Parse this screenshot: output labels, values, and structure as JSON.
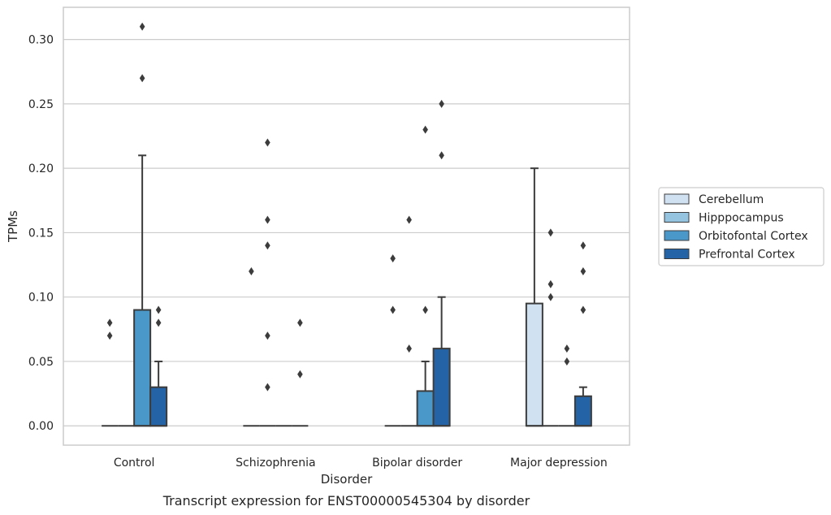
{
  "caption": "Transcript expression for ENST00000545304 by disorder",
  "chart_data": {
    "type": "box",
    "title": "",
    "xlabel": "Disorder",
    "ylabel": "TPMs",
    "ylim": [
      -0.015,
      0.325
    ],
    "yticks": [
      0.0,
      0.05,
      0.1,
      0.15,
      0.2,
      0.25,
      0.3
    ],
    "ytick_labels": [
      "0.00",
      "0.05",
      "0.10",
      "0.15",
      "0.20",
      "0.25",
      "0.30"
    ],
    "grid": true,
    "legend_position": "right",
    "categories": [
      "Control",
      "Schizophrenia",
      "Bipolar disorder",
      "Major depression"
    ],
    "series": [
      {
        "name": "Cerebellum",
        "color": "#d0e1f2",
        "boxes": [
          {
            "q1": 0.0,
            "median": 0.0,
            "q3": 0.0,
            "whisker_low": 0.0,
            "whisker_high": 0.0,
            "outliers": [
              0.07,
              0.08
            ]
          },
          {
            "q1": 0.0,
            "median": 0.0,
            "q3": 0.0,
            "whisker_low": 0.0,
            "whisker_high": 0.0,
            "outliers": [
              0.12
            ]
          },
          {
            "q1": 0.0,
            "median": 0.0,
            "q3": 0.0,
            "whisker_low": 0.0,
            "whisker_high": 0.0,
            "outliers": [
              0.09,
              0.13
            ]
          },
          {
            "q1": 0.0,
            "median": 0.0,
            "q3": 0.095,
            "whisker_low": 0.0,
            "whisker_high": 0.2,
            "outliers": []
          }
        ]
      },
      {
        "name": "Hipppocampus",
        "color": "#94c4df",
        "boxes": [
          {
            "q1": 0.0,
            "median": 0.0,
            "q3": 0.0,
            "whisker_low": 0.0,
            "whisker_high": 0.0,
            "outliers": []
          },
          {
            "q1": 0.0,
            "median": 0.0,
            "q3": 0.0,
            "whisker_low": 0.0,
            "whisker_high": 0.0,
            "outliers": [
              0.03,
              0.07,
              0.14,
              0.16,
              0.22
            ]
          },
          {
            "q1": 0.0,
            "median": 0.0,
            "q3": 0.0,
            "whisker_low": 0.0,
            "whisker_high": 0.0,
            "outliers": [
              0.06,
              0.16
            ]
          },
          {
            "q1": 0.0,
            "median": 0.0,
            "q3": 0.0,
            "whisker_low": 0.0,
            "whisker_high": 0.0,
            "outliers": [
              0.1,
              0.11,
              0.15
            ]
          }
        ]
      },
      {
        "name": "Orbitofontal Cortex",
        "color": "#4a98c9",
        "boxes": [
          {
            "q1": 0.0,
            "median": 0.0,
            "q3": 0.09,
            "whisker_low": 0.0,
            "whisker_high": 0.21,
            "outliers": [
              0.27,
              0.31
            ]
          },
          {
            "q1": 0.0,
            "median": 0.0,
            "q3": 0.0,
            "whisker_low": 0.0,
            "whisker_high": 0.0,
            "outliers": []
          },
          {
            "q1": 0.0,
            "median": 0.0,
            "q3": 0.027,
            "whisker_low": 0.0,
            "whisker_high": 0.05,
            "outliers": [
              0.09,
              0.23
            ]
          },
          {
            "q1": 0.0,
            "median": 0.0,
            "q3": 0.0,
            "whisker_low": 0.0,
            "whisker_high": 0.0,
            "outliers": [
              0.05,
              0.06
            ]
          }
        ]
      },
      {
        "name": "Prefrontal Cortex",
        "color": "#2464a6",
        "boxes": [
          {
            "q1": 0.0,
            "median": 0.0,
            "q3": 0.03,
            "whisker_low": 0.0,
            "whisker_high": 0.05,
            "outliers": [
              0.08,
              0.09
            ]
          },
          {
            "q1": 0.0,
            "median": 0.0,
            "q3": 0.0,
            "whisker_low": 0.0,
            "whisker_high": 0.0,
            "outliers": [
              0.04,
              0.08
            ]
          },
          {
            "q1": 0.0,
            "median": 0.0,
            "q3": 0.06,
            "whisker_low": 0.0,
            "whisker_high": 0.1,
            "outliers": [
              0.21,
              0.25
            ]
          },
          {
            "q1": 0.0,
            "median": 0.0,
            "q3": 0.023,
            "whisker_low": 0.0,
            "whisker_high": 0.03,
            "outliers": [
              0.09,
              0.12,
              0.14
            ]
          }
        ]
      }
    ],
    "colors": {
      "grid": "#cccccc",
      "frame": "#cccccc",
      "box_edge": "#3c3c3c"
    }
  }
}
